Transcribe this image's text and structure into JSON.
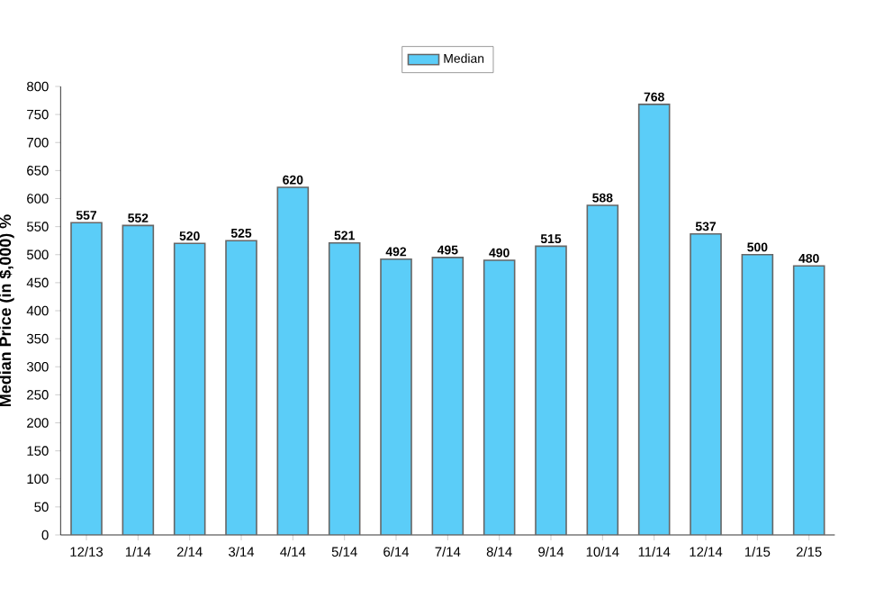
{
  "chart_data": {
    "type": "bar",
    "ylabel": "Median Price (in $,000) %",
    "categories": [
      "12/13",
      "1/14",
      "2/14",
      "3/14",
      "4/14",
      "5/14",
      "6/14",
      "7/14",
      "8/14",
      "9/14",
      "10/14",
      "11/14",
      "12/14",
      "1/15",
      "2/15"
    ],
    "series": [
      {
        "name": "Median",
        "color": "#5bcdf8",
        "values": [
          557,
          552,
          520,
          525,
          620,
          521,
          492,
          495,
          490,
          515,
          588,
          768,
          537,
          500,
          480
        ]
      }
    ],
    "ylim": [
      0,
      800
    ],
    "yticks": [
      0,
      50,
      100,
      150,
      200,
      250,
      300,
      350,
      400,
      450,
      500,
      550,
      600,
      650,
      700,
      750,
      800
    ],
    "data_labels": true,
    "legend": "top",
    "grid": false
  }
}
